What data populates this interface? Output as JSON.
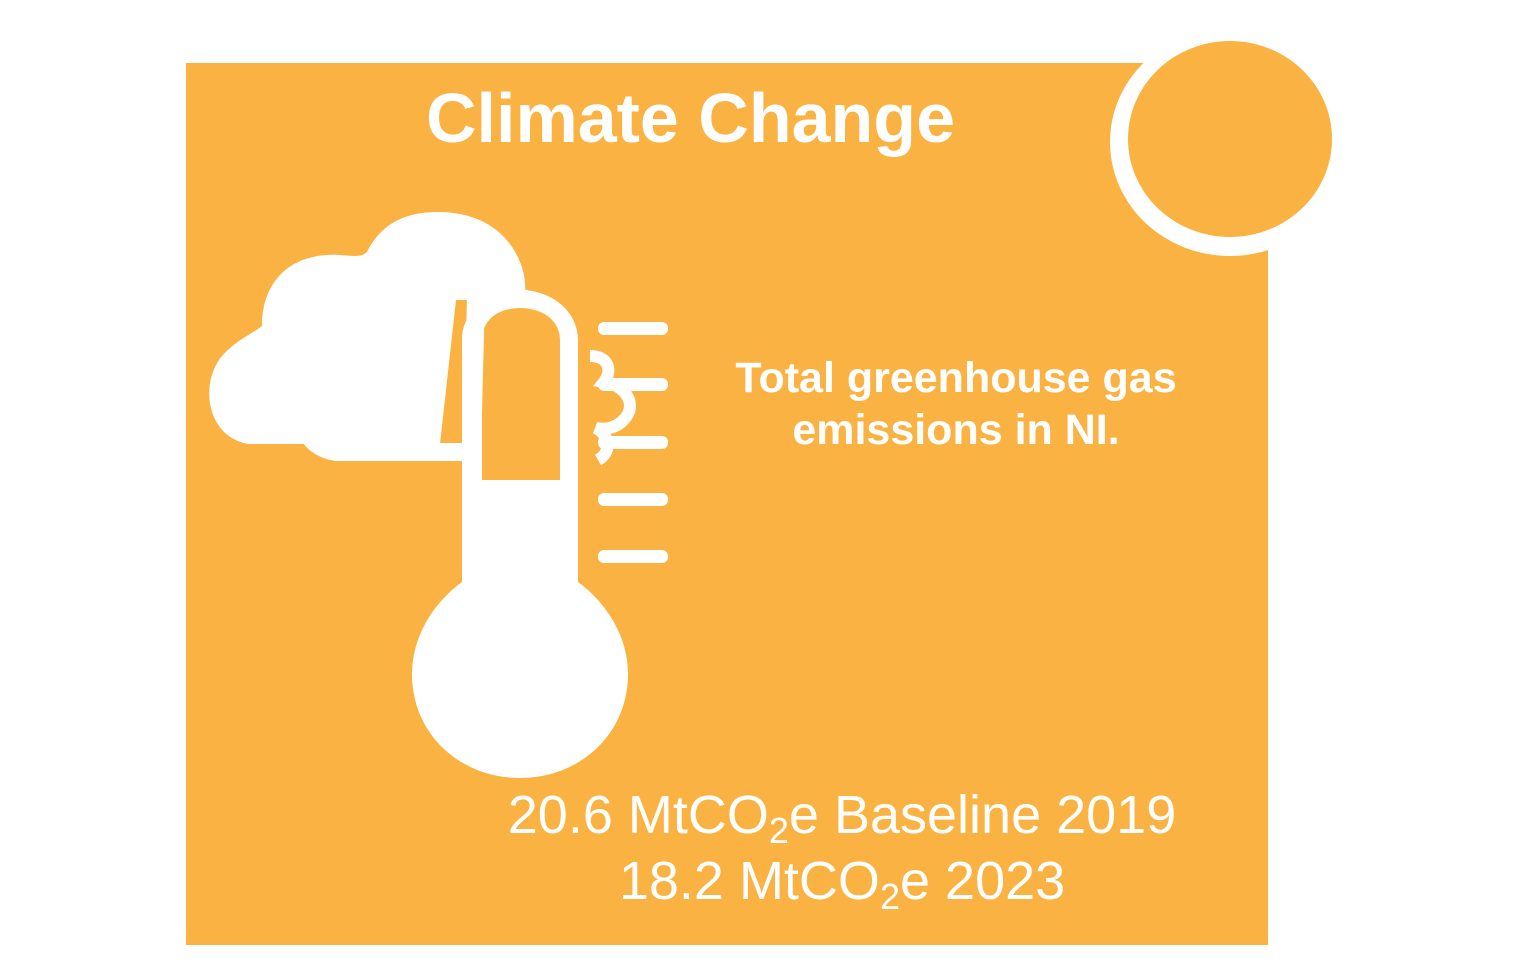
{
  "colors": {
    "panel": "#FAB242",
    "foreground": "#FFFFFF",
    "background": "#FFFFFF"
  },
  "title": "Climate Change",
  "icons": [
    "cloud-icon",
    "thermometer-icon"
  ],
  "description": {
    "line1": "Total greenhouse gas",
    "line2": "emissions in NI."
  },
  "figures": [
    {
      "value": "20.6",
      "unit_pre": "MtCO",
      "unit_sub": "2",
      "unit_post": "e",
      "label": "Baseline 2019"
    },
    {
      "value": "18.2",
      "unit_pre": "MtCO",
      "unit_sub": "2",
      "unit_post": "e",
      "label": "2023"
    }
  ]
}
